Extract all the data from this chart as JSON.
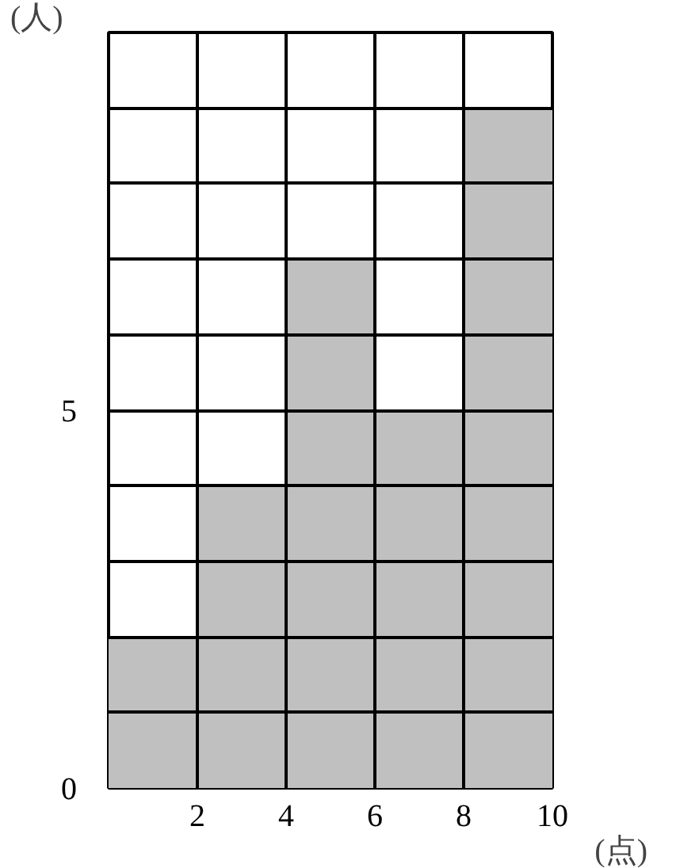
{
  "chart_data": {
    "type": "histogram",
    "xlabel": "(点)",
    "ylabel": "(人)",
    "bins": [
      0,
      2,
      4,
      6,
      8,
      10
    ],
    "values": [
      2,
      4,
      7,
      5,
      9
    ],
    "color": "#c0c0c0",
    "xlim": [
      0,
      10
    ],
    "ylim": [
      0,
      10
    ],
    "xticks": [
      {
        "value": 0,
        "label": null
      },
      2,
      4,
      6,
      8,
      10
    ],
    "yticks": [
      0,
      {
        "value": 1,
        "label": null
      },
      {
        "value": 2,
        "label": null
      },
      {
        "value": 3,
        "label": null
      },
      {
        "value": 4,
        "label": null
      },
      5,
      {
        "value": 6,
        "label": null
      },
      {
        "value": 7,
        "label": null
      },
      {
        "value": 8,
        "label": null
      },
      {
        "value": 9,
        "label": null
      },
      {
        "value": 10,
        "label": null
      }
    ],
    "grid": true
  }
}
